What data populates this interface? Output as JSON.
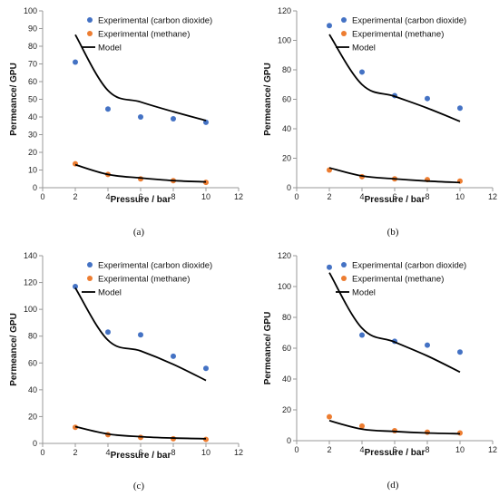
{
  "colors": {
    "co2": "#4472C4",
    "ch4": "#ED7D31",
    "model": "#000000",
    "axis": "#999999"
  },
  "legend": {
    "co2_label": "Experimental (carbon dioxide)",
    "ch4_label": "Experimental (methane)",
    "model_label": "Model"
  },
  "chart_data": [
    {
      "type": "scatter",
      "caption": "(a)",
      "xlabel": "Pressure / bar",
      "ylabel": "Permeance/ GPU",
      "xlim": [
        0,
        12
      ],
      "ylim": [
        0,
        100
      ],
      "xticks": [
        0,
        2,
        4,
        6,
        8,
        10,
        12
      ],
      "yticks": [
        0,
        10,
        20,
        30,
        40,
        50,
        60,
        70,
        80,
        90,
        100
      ],
      "legend_position": "top-right",
      "series": [
        {
          "name": "Experimental (carbon dioxide)",
          "kind": "points",
          "x": [
            2,
            4,
            6,
            8,
            10
          ],
          "y": [
            71,
            44.5,
            40,
            39,
            37
          ]
        },
        {
          "name": "Experimental (methane)",
          "kind": "points",
          "x": [
            2,
            4,
            6,
            8,
            10
          ],
          "y": [
            13.5,
            7.5,
            5,
            4,
            3
          ]
        },
        {
          "name": "Model",
          "kind": "line",
          "x": [
            2,
            4,
            6,
            8,
            10
          ],
          "y": [
            86.5,
            55,
            48.5,
            43,
            38
          ]
        },
        {
          "name": "Model",
          "kind": "line",
          "x": [
            2,
            4,
            6,
            8,
            10
          ],
          "y": [
            13,
            7.5,
            5.5,
            4,
            3.3
          ]
        }
      ]
    },
    {
      "type": "scatter",
      "caption": "(b)",
      "xlabel": "Pressure / bar",
      "ylabel": "Permeance/ GPU",
      "xlim": [
        0,
        12
      ],
      "ylim": [
        0,
        120
      ],
      "xticks": [
        0,
        2,
        4,
        6,
        8,
        10,
        12
      ],
      "yticks": [
        0,
        20,
        40,
        60,
        80,
        100,
        120
      ],
      "legend_position": "top-right",
      "series": [
        {
          "name": "Experimental (carbon dioxide)",
          "kind": "points",
          "x": [
            2,
            4,
            6,
            8,
            10
          ],
          "y": [
            110,
            78.5,
            62.5,
            60.5,
            54
          ]
        },
        {
          "name": "Experimental (methane)",
          "kind": "points",
          "x": [
            2,
            4,
            6,
            8,
            10
          ],
          "y": [
            12,
            7.5,
            6,
            5.5,
            4.5
          ]
        },
        {
          "name": "Model",
          "kind": "line",
          "x": [
            2,
            4,
            6,
            8,
            10
          ],
          "y": [
            104,
            70,
            62,
            54,
            45
          ]
        },
        {
          "name": "Model",
          "kind": "line",
          "x": [
            2,
            4,
            6,
            8,
            10
          ],
          "y": [
            13.5,
            8,
            6,
            4.5,
            3.5
          ]
        }
      ]
    },
    {
      "type": "scatter",
      "caption": "(c)",
      "xlabel": "Pressure / bar",
      "ylabel": "Permeance/ GPU",
      "xlim": [
        0,
        12
      ],
      "ylim": [
        0,
        140
      ],
      "xticks": [
        0,
        2,
        4,
        6,
        8,
        10,
        12
      ],
      "yticks": [
        0,
        20,
        40,
        60,
        80,
        100,
        120,
        140
      ],
      "legend_position": "top-right",
      "series": [
        {
          "name": "Experimental (carbon dioxide)",
          "kind": "points",
          "x": [
            2,
            4,
            6,
            8,
            10
          ],
          "y": [
            117,
            83,
            81,
            65,
            56
          ]
        },
        {
          "name": "Experimental (methane)",
          "kind": "points",
          "x": [
            2,
            4,
            6,
            8,
            10
          ],
          "y": [
            12,
            6.5,
            4.5,
            3.5,
            3
          ]
        },
        {
          "name": "Model",
          "kind": "line",
          "x": [
            2,
            4,
            6,
            8,
            10
          ],
          "y": [
            116,
            77,
            69,
            59,
            47
          ]
        },
        {
          "name": "Model",
          "kind": "line",
          "x": [
            2,
            4,
            6,
            8,
            10
          ],
          "y": [
            12.5,
            7,
            5,
            4,
            3.5
          ]
        }
      ]
    },
    {
      "type": "scatter",
      "caption": "(d)",
      "xlabel": "Pressure / bar",
      "ylabel": "Permeance/ GPU",
      "xlim": [
        0,
        12
      ],
      "ylim": [
        0,
        120
      ],
      "xticks": [
        0,
        2,
        4,
        6,
        8,
        10,
        12
      ],
      "yticks": [
        0,
        20,
        40,
        60,
        80,
        100,
        120
      ],
      "legend_position": "top-right",
      "series": [
        {
          "name": "Experimental (carbon dioxide)",
          "kind": "points",
          "x": [
            2,
            4,
            6,
            8,
            10
          ],
          "y": [
            112.5,
            68.5,
            64.5,
            62,
            57.5
          ]
        },
        {
          "name": "Experimental (methane)",
          "kind": "points",
          "x": [
            2,
            4,
            6,
            8,
            10
          ],
          "y": [
            15.5,
            9.5,
            6.5,
            5.5,
            5
          ]
        },
        {
          "name": "Model",
          "kind": "line",
          "x": [
            2,
            4,
            6,
            8,
            10
          ],
          "y": [
            109,
            73,
            64,
            55,
            44.5
          ]
        },
        {
          "name": "Model",
          "kind": "line",
          "x": [
            2,
            4,
            6,
            8,
            10
          ],
          "y": [
            13,
            7.5,
            6,
            5,
            4.5
          ]
        }
      ]
    }
  ]
}
